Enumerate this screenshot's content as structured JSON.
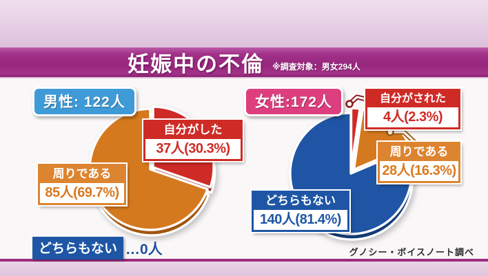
{
  "page": {
    "title": "妊娠中の不倫",
    "subtitle": "※調査対象：男女294人",
    "credit": "グノシー・ボイスノート調べ"
  },
  "male": {
    "badge": "男性: 122人",
    "zero_label": "どちらもない",
    "zero_value": "…0人",
    "labels": {
      "self": {
        "title": "自分がした",
        "value": "37人(30.3%)"
      },
      "around": {
        "title": "周りである",
        "value": "85人(69.7%)"
      }
    }
  },
  "female": {
    "badge": "女性:172人",
    "labels": {
      "self": {
        "title": "自分がされた",
        "value": "4人(2.3%)"
      },
      "around": {
        "title": "周りである",
        "value": "28人(16.3%)"
      },
      "neither": {
        "title": "どちらもない",
        "value": "140人(81.4%)"
      }
    }
  },
  "colors": {
    "red": "#cf2b26",
    "orange": "#d5791e",
    "blue": "#1e56a5",
    "male_badge": "#3f9bd8",
    "female_badge": "#dd3f7e",
    "title_band": "#97267d"
  },
  "chart_data": [
    {
      "type": "pie",
      "title": "男性: 122人",
      "total": 122,
      "start_angle": -90,
      "direction": "clockwise",
      "slices": [
        {
          "label": "自分がした",
          "count": 37,
          "percent": 30.3,
          "color": "#ce2b27",
          "dark": "#96201b",
          "explode": 5
        },
        {
          "label": "周りである",
          "count": 85,
          "percent": 69.7,
          "color": "#d5791e",
          "dark": "#a3560f",
          "explode": 0
        },
        {
          "label": "どちらもない",
          "count": 0,
          "percent": 0.0,
          "color": "#1e56a5",
          "dark": "#133d78",
          "explode": 0
        }
      ]
    },
    {
      "type": "pie",
      "title": "女性:172人",
      "total": 172,
      "start_angle": -90,
      "direction": "clockwise",
      "slices": [
        {
          "label": "自分がされた",
          "count": 4,
          "percent": 2.3,
          "color": "#ce2b27",
          "dark": "#96201b",
          "explode": 7
        },
        {
          "label": "周りである",
          "count": 28,
          "percent": 16.3,
          "color": "#d5791e",
          "dark": "#a3560f",
          "explode": 7
        },
        {
          "label": "どちらもない",
          "count": 140,
          "percent": 81.4,
          "color": "#1f55a4",
          "dark": "#123c77",
          "explode": 0
        }
      ]
    }
  ]
}
